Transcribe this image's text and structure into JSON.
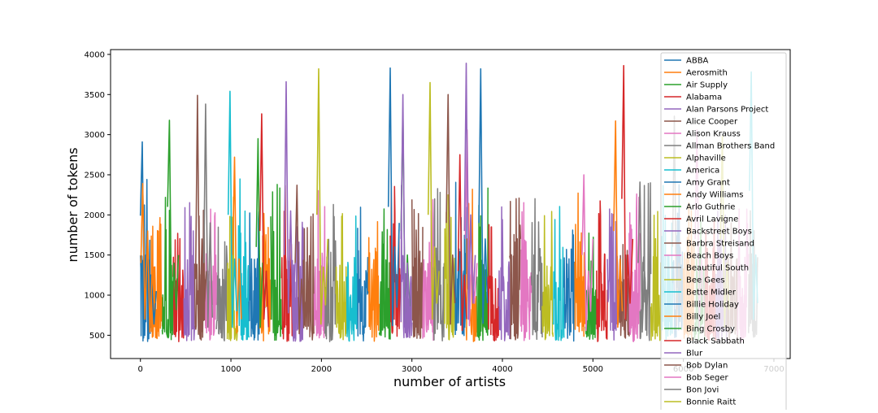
{
  "chart_data": {
    "type": "line",
    "title": "",
    "xlabel": "number of artists",
    "ylabel": "number of tokens",
    "xlim": [
      -330,
      7180
    ],
    "ylim": [
      210,
      4060
    ],
    "xticks": [
      0,
      1000,
      2000,
      3000,
      4000,
      5000,
      6000,
      7000
    ],
    "xtick_labels": [
      "0",
      "1000",
      "2000",
      "3000",
      "4000",
      "5000",
      "6000",
      "7000"
    ],
    "yticks": [
      500,
      1000,
      1500,
      2000,
      2500,
      3000,
      3500,
      4000
    ],
    "ytick_labels": [
      "500",
      "1000",
      "1500",
      "2000",
      "2500",
      "3000",
      "3500",
      "4000"
    ],
    "grid": false,
    "legend_position": "top-right",
    "x_range": [
      0,
      6820
    ],
    "series": [
      {
        "name": "ABBA",
        "color": "#1f77b4",
        "values": [
          [
            0,
            1990
          ],
          [
            20,
            2910
          ],
          [
            45,
            560
          ],
          [
            60,
            1500
          ],
          [
            90,
            720
          ],
          [
            120,
            1250
          ],
          [
            150,
            640
          ],
          [
            175,
            1050
          ]
        ]
      },
      {
        "name": "Aerosmith",
        "color": "#ff7f0e",
        "values": [
          [
            5,
            1400
          ],
          [
            25,
            2390
          ],
          [
            50,
            700
          ],
          [
            80,
            1800
          ],
          [
            105,
            540
          ],
          [
            130,
            1350
          ],
          [
            160,
            900
          ]
        ]
      },
      {
        "name": "Air Supply",
        "color": "#2ca02c",
        "values": [
          [
            300,
            2100
          ],
          [
            320,
            3180
          ],
          [
            345,
            600
          ],
          [
            370,
            1400
          ],
          [
            395,
            820
          ],
          [
            420,
            1500
          ]
        ]
      },
      {
        "name": "Alabama",
        "color": "#d62728",
        "values": [
          [
            5320,
            2200
          ],
          [
            5340,
            3860
          ],
          [
            5360,
            700
          ],
          [
            5385,
            1500
          ],
          [
            5410,
            900
          ],
          [
            5440,
            1700
          ]
        ]
      },
      {
        "name": "Alan Parsons Project",
        "color": "#9467bd",
        "values": [
          [
            1590,
            1500
          ],
          [
            1610,
            3660
          ],
          [
            1635,
            780
          ],
          [
            1660,
            2050
          ],
          [
            1685,
            650
          ],
          [
            1710,
            1400
          ]
        ]
      },
      {
        "name": "Alice Cooper",
        "color": "#8c564b",
        "values": [
          [
            610,
            1200
          ],
          [
            630,
            3490
          ],
          [
            655,
            500
          ],
          [
            680,
            1700
          ],
          [
            705,
            820
          ],
          [
            730,
            1300
          ]
        ]
      },
      {
        "name": "Alison Krauss",
        "color": "#e377c2",
        "values": [
          [
            3590,
            1700
          ],
          [
            3610,
            3060
          ],
          [
            3635,
            620
          ],
          [
            3660,
            1500
          ],
          [
            3690,
            900
          ],
          [
            3720,
            1400
          ]
        ]
      },
      {
        "name": "Allman Brothers Band",
        "color": "#7f7f7f",
        "values": [
          [
            700,
            1400
          ],
          [
            720,
            3380
          ],
          [
            745,
            600
          ],
          [
            770,
            1900
          ],
          [
            795,
            720
          ]
        ]
      },
      {
        "name": "Alphaville",
        "color": "#bcbd22",
        "values": [
          [
            1950,
            2000
          ],
          [
            1970,
            3820
          ],
          [
            1995,
            640
          ],
          [
            2020,
            1350
          ],
          [
            2045,
            880
          ],
          [
            2070,
            1700
          ]
        ]
      },
      {
        "name": "America",
        "color": "#17becf",
        "values": [
          [
            6730,
            2300
          ],
          [
            6750,
            3780
          ],
          [
            6775,
            700
          ],
          [
            6800,
            1500
          ],
          [
            6820,
            900
          ]
        ]
      },
      {
        "name": "Amy Grant",
        "color": "#1f77b4",
        "values": [
          [
            2740,
            2100
          ],
          [
            2760,
            3830
          ],
          [
            2785,
            620
          ],
          [
            2810,
            1600
          ],
          [
            2835,
            850
          ],
          [
            2860,
            1900
          ]
        ]
      },
      {
        "name": "Andy Williams",
        "color": "#ff7f0e",
        "values": [
          [
            1020,
            1500
          ],
          [
            1040,
            2720
          ],
          [
            1065,
            530
          ],
          [
            1090,
            1450
          ],
          [
            1115,
            700
          ]
        ]
      },
      {
        "name": "Arlo Guthrie",
        "color": "#2ca02c",
        "values": [
          [
            1280,
            1600
          ],
          [
            1300,
            2950
          ],
          [
            1325,
            600
          ],
          [
            1350,
            1400
          ],
          [
            1375,
            840
          ]
        ]
      },
      {
        "name": "Avril Lavigne",
        "color": "#d62728",
        "values": [
          [
            1320,
            1800
          ],
          [
            1340,
            3260
          ],
          [
            1365,
            700
          ],
          [
            1390,
            1300
          ],
          [
            1415,
            600
          ]
        ]
      },
      {
        "name": "Backstreet Boys",
        "color": "#9467bd",
        "values": [
          [
            3580,
            1800
          ],
          [
            3600,
            3890
          ],
          [
            3625,
            700
          ],
          [
            3650,
            2000
          ],
          [
            3675,
            900
          ],
          [
            3700,
            1500
          ]
        ]
      },
      {
        "name": "Barbra Streisand",
        "color": "#8c564b",
        "values": [
          [
            3380,
            1900
          ],
          [
            3400,
            3500
          ],
          [
            3425,
            640
          ],
          [
            3450,
            1500
          ],
          [
            3475,
            900
          ]
        ]
      },
      {
        "name": "Beach Boys",
        "color": "#e377c2",
        "values": [
          [
            4880,
            1500
          ],
          [
            4900,
            2500
          ],
          [
            4925,
            560
          ],
          [
            4950,
            1300
          ],
          [
            4975,
            800
          ],
          [
            5000,
            1700
          ]
        ]
      },
      {
        "name": "Beautiful South",
        "color": "#7f7f7f",
        "values": [
          [
            5880,
            1600
          ],
          [
            5900,
            3230
          ],
          [
            5925,
            620
          ],
          [
            5950,
            1400
          ],
          [
            5975,
            850
          ]
        ]
      },
      {
        "name": "Bee Gees",
        "color": "#bcbd22",
        "values": [
          [
            3180,
            2000
          ],
          [
            3200,
            3650
          ],
          [
            3225,
            700
          ],
          [
            3250,
            1600
          ],
          [
            3275,
            900
          ],
          [
            3300,
            1300
          ]
        ]
      },
      {
        "name": "Bette Midler",
        "color": "#17becf",
        "values": [
          [
            970,
            2000
          ],
          [
            990,
            3540
          ],
          [
            1015,
            600
          ],
          [
            1040,
            1450
          ],
          [
            1065,
            800
          ]
        ]
      },
      {
        "name": "Billie Holiday",
        "color": "#1f77b4",
        "values": [
          [
            3740,
            1900
          ],
          [
            3760,
            3820
          ],
          [
            3785,
            650
          ],
          [
            3810,
            1700
          ],
          [
            3835,
            900
          ]
        ]
      },
      {
        "name": "Billy Joel",
        "color": "#ff7f0e",
        "values": [
          [
            5230,
            1800
          ],
          [
            5250,
            3170
          ],
          [
            5275,
            600
          ],
          [
            5300,
            1450
          ],
          [
            5325,
            800
          ]
        ]
      },
      {
        "name": "Bing Crosby",
        "color": "#2ca02c",
        "values": [
          [
            2880,
            1800
          ],
          [
            2900,
            3310
          ],
          [
            2925,
            640
          ],
          [
            2950,
            1500
          ],
          [
            2975,
            860
          ]
        ]
      },
      {
        "name": "Black Sabbath",
        "color": "#d62728",
        "values": [
          [
            3510,
            1300
          ],
          [
            3530,
            2750
          ],
          [
            3555,
            560
          ],
          [
            3580,
            1250
          ],
          [
            3605,
            700
          ]
        ]
      },
      {
        "name": "Blur",
        "color": "#9467bd",
        "values": [
          [
            2880,
            1700
          ],
          [
            2900,
            3500
          ],
          [
            2925,
            600
          ],
          [
            2950,
            1400
          ],
          [
            2975,
            800
          ]
        ]
      },
      {
        "name": "Bob Dylan",
        "color": "#8c564b",
        "values": [
          [
            1710,
            1400
          ],
          [
            1730,
            2370
          ],
          [
            1755,
            520
          ],
          [
            1780,
            1200
          ],
          [
            1805,
            700
          ]
        ]
      },
      {
        "name": "Bob Seger",
        "color": "#e377c2",
        "values": [
          [
            6130,
            1700
          ],
          [
            6150,
            3060
          ],
          [
            6175,
            600
          ],
          [
            6200,
            1450
          ],
          [
            6225,
            850
          ]
        ]
      },
      {
        "name": "Bon Jovi",
        "color": "#7f7f7f",
        "values": [
          [
            5500,
            1400
          ],
          [
            5520,
            2410
          ],
          [
            5545,
            540
          ],
          [
            5570,
            1300
          ],
          [
            5595,
            720
          ]
        ]
      },
      {
        "name": "Bonnie Raitt",
        "color": "#bcbd22",
        "values": [
          [
            6410,
            1700
          ],
          [
            6430,
            2980
          ],
          [
            6455,
            600
          ],
          [
            6480,
            1400
          ],
          [
            6505,
            820
          ]
        ]
      }
    ]
  }
}
